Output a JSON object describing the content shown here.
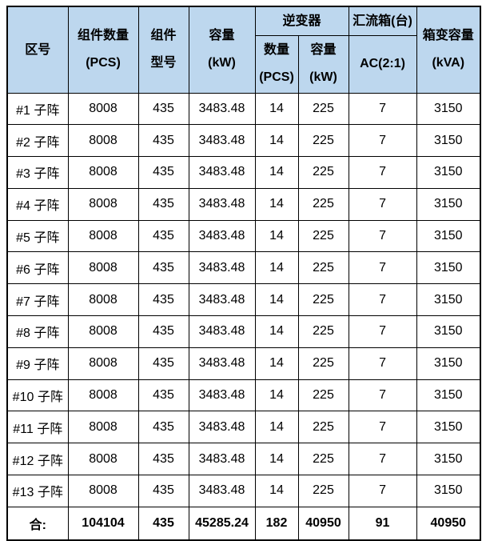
{
  "colors": {
    "header_bg": "#BDD7EE",
    "border": "#000000",
    "text": "#000000",
    "row_bg": "#FFFFFF"
  },
  "table": {
    "header": {
      "zone": "区号",
      "module_qty_l1": "组件数量",
      "module_qty_l2": "(PCS)",
      "module_model_l1": "组件",
      "module_model_l2": "型号",
      "capacity_l1": "容量",
      "capacity_l2": "(kW)",
      "inverter_group": "逆变器",
      "inverter_qty_l1": "数量",
      "inverter_qty_l2": "(PCS)",
      "inverter_cap_l1": "容量",
      "inverter_cap_l2": "(kW)",
      "combiner_group": "汇流箱(台)",
      "combiner_sub": "AC(2:1)",
      "transformer_l1": "箱变容量",
      "transformer_l2": "(kVA)"
    },
    "rows": [
      {
        "zone": "#1 子阵",
        "values": [
          "8008",
          "435",
          "3483.48",
          "14",
          "225",
          "7",
          "3150"
        ]
      },
      {
        "zone": "#2 子阵",
        "values": [
          "8008",
          "435",
          "3483.48",
          "14",
          "225",
          "7",
          "3150"
        ]
      },
      {
        "zone": "#3 子阵",
        "values": [
          "8008",
          "435",
          "3483.48",
          "14",
          "225",
          "7",
          "3150"
        ]
      },
      {
        "zone": "#4 子阵",
        "values": [
          "8008",
          "435",
          "3483.48",
          "14",
          "225",
          "7",
          "3150"
        ]
      },
      {
        "zone": "#5 子阵",
        "values": [
          "8008",
          "435",
          "3483.48",
          "14",
          "225",
          "7",
          "3150"
        ]
      },
      {
        "zone": "#6 子阵",
        "values": [
          "8008",
          "435",
          "3483.48",
          "14",
          "225",
          "7",
          "3150"
        ]
      },
      {
        "zone": "#7 子阵",
        "values": [
          "8008",
          "435",
          "3483.48",
          "14",
          "225",
          "7",
          "3150"
        ]
      },
      {
        "zone": "#8 子阵",
        "values": [
          "8008",
          "435",
          "3483.48",
          "14",
          "225",
          "7",
          "3150"
        ]
      },
      {
        "zone": "#9 子阵",
        "values": [
          "8008",
          "435",
          "3483.48",
          "14",
          "225",
          "7",
          "3150"
        ]
      },
      {
        "zone": "#10 子阵",
        "values": [
          "8008",
          "435",
          "3483.48",
          "14",
          "225",
          "7",
          "3150"
        ]
      },
      {
        "zone": "#11 子阵",
        "values": [
          "8008",
          "435",
          "3483.48",
          "14",
          "225",
          "7",
          "3150"
        ]
      },
      {
        "zone": "#12 子阵",
        "values": [
          "8008",
          "435",
          "3483.48",
          "14",
          "225",
          "7",
          "3150"
        ]
      },
      {
        "zone": "#13 子阵",
        "values": [
          "8008",
          "435",
          "3483.48",
          "14",
          "225",
          "7",
          "3150"
        ]
      }
    ],
    "total": {
      "label": "合:",
      "values": [
        "104104",
        "435",
        "45285.24",
        "182",
        "40950",
        "91",
        "40950"
      ]
    }
  }
}
